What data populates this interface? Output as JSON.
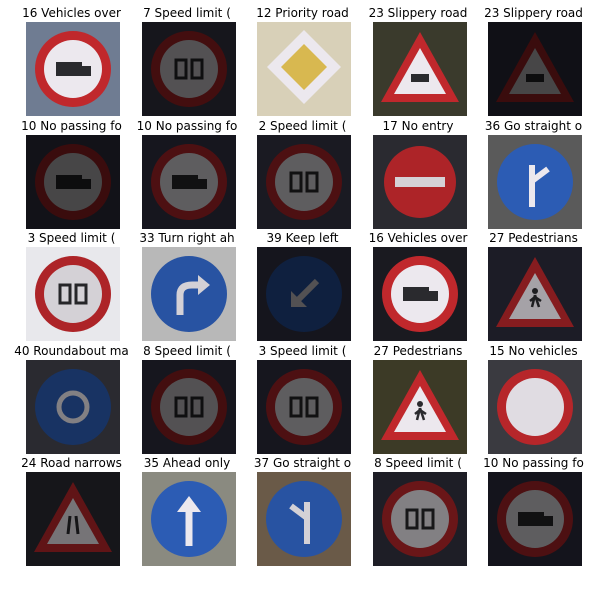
{
  "tiles": [
    {
      "label": "16 Vehicles over",
      "bg": "#6f7c92",
      "shape": "prohibit",
      "brightness": 1.0,
      "symbol": "truck"
    },
    {
      "label": "7 Speed limit (",
      "bg": "#16161c",
      "shape": "prohibit",
      "brightness": 0.35,
      "symbol": "num"
    },
    {
      "label": "12 Priority road",
      "bg": "#d8d0b8",
      "shape": "diamond",
      "brightness": 1.0,
      "symbol": ""
    },
    {
      "label": "23 Slippery road",
      "bg": "#3a3a2c",
      "shape": "warning",
      "brightness": 1.0,
      "symbol": "car"
    },
    {
      "label": "23 Slippery road",
      "bg": "#101016",
      "shape": "warning",
      "brightness": 0.3,
      "symbol": "car"
    },
    {
      "label": "10 No passing fo",
      "bg": "#121218",
      "shape": "prohibit",
      "brightness": 0.3,
      "symbol": "truck"
    },
    {
      "label": "10 No passing fo",
      "bg": "#16161e",
      "shape": "prohibit",
      "brightness": 0.4,
      "symbol": "truck"
    },
    {
      "label": "2 Speed limit (",
      "bg": "#1a1a22",
      "shape": "prohibit",
      "brightness": 0.4,
      "symbol": "num"
    },
    {
      "label": "17 No entry",
      "bg": "#2a2a30",
      "shape": "noentry",
      "brightness": 0.9,
      "symbol": ""
    },
    {
      "label": "36 Go straight o",
      "bg": "#5a5a5a",
      "shape": "blue",
      "brightness": 1.0,
      "symbol": "fork"
    },
    {
      "label": "3 Speed limit (",
      "bg": "#e8e8ec",
      "shape": "prohibit",
      "brightness": 0.9,
      "symbol": "num"
    },
    {
      "label": "33 Turn right ah",
      "bg": "#b8b8b8",
      "shape": "blue",
      "brightness": 0.9,
      "symbol": "right"
    },
    {
      "label": "39 Keep left",
      "bg": "#15151d",
      "shape": "blue",
      "brightness": 0.35,
      "symbol": "downleft"
    },
    {
      "label": "16 Vehicles over",
      "bg": "#1a1a20",
      "shape": "prohibit",
      "brightness": 1.0,
      "symbol": "truck"
    },
    {
      "label": "27 Pedestrians",
      "bg": "#1c1c26",
      "shape": "warning",
      "brightness": 0.7,
      "symbol": "person"
    },
    {
      "label": "40 Roundabout ma",
      "bg": "#2a2a30",
      "shape": "blue",
      "brightness": 0.55,
      "symbol": "round"
    },
    {
      "label": "8 Speed limit (",
      "bg": "#16161e",
      "shape": "prohibit",
      "brightness": 0.35,
      "symbol": "num"
    },
    {
      "label": "3 Speed limit (",
      "bg": "#16161e",
      "shape": "prohibit",
      "brightness": 0.4,
      "symbol": "num"
    },
    {
      "label": "27 Pedestrians",
      "bg": "#3c3a26",
      "shape": "warning",
      "brightness": 1.0,
      "symbol": "person"
    },
    {
      "label": "15 No vehicles",
      "bg": "#3a3a40",
      "shape": "prohibit",
      "brightness": 0.95,
      "symbol": ""
    },
    {
      "label": "24 Road narrows",
      "bg": "#16161a",
      "shape": "warning",
      "brightness": 0.5,
      "symbol": "narrow"
    },
    {
      "label": "35 Ahead only",
      "bg": "#8a8a80",
      "shape": "blue",
      "brightness": 1.0,
      "symbol": "up"
    },
    {
      "label": "37 Go straight o",
      "bg": "#6a5a48",
      "shape": "blue",
      "brightness": 0.9,
      "symbol": "forkleft"
    },
    {
      "label": "8 Speed limit (",
      "bg": "#1e1e26",
      "shape": "prohibit",
      "brightness": 0.55,
      "symbol": "num"
    },
    {
      "label": "10 No passing fo",
      "bg": "#14141c",
      "shape": "prohibit",
      "brightness": 0.4,
      "symbol": "truck"
    }
  ]
}
